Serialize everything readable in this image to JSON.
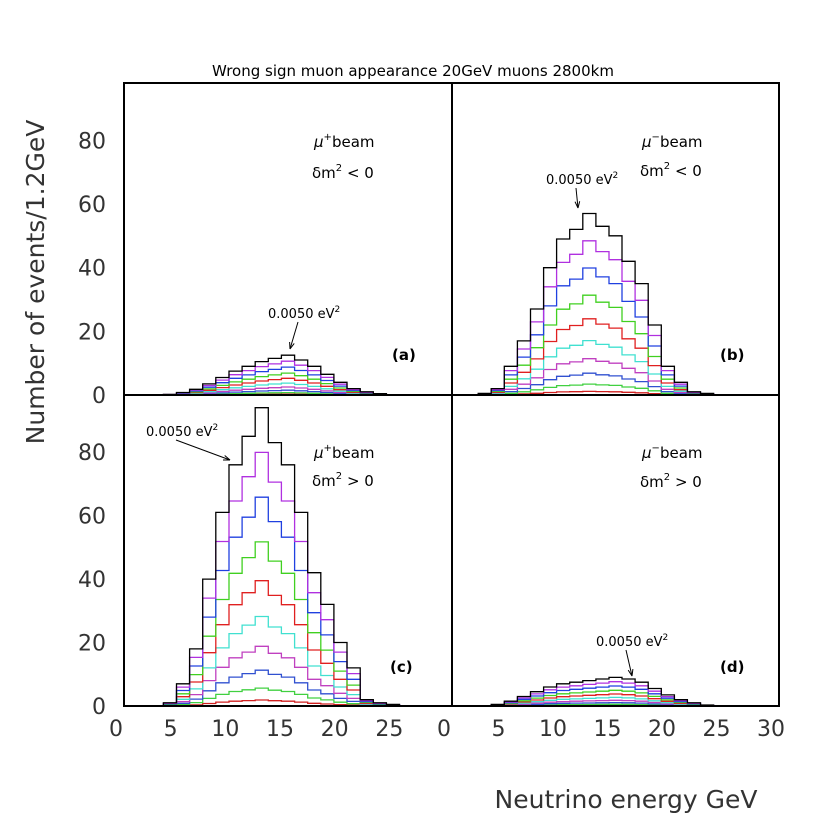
{
  "chart_data": {
    "type": "histogram",
    "title": "Wrong sign muon appearance 20GeV muons 2800km",
    "xlabel": "Neutrino energy GeV",
    "ylabel": "Number of events/1.2GeV",
    "xlim": [
      0,
      30
    ],
    "ylim": [
      0,
      98
    ],
    "yticks": [
      "0",
      "20",
      "40",
      "60",
      "80"
    ],
    "xticks_left": [
      "0",
      "5",
      "10",
      "15",
      "20",
      "25"
    ],
    "xticks_right": [
      "0",
      "5",
      "10",
      "15",
      "20",
      "25",
      "30"
    ],
    "bin_width_gev": 1.2,
    "series_colors": [
      "#000000",
      "#b030e0",
      "#2040e0",
      "#40d020",
      "#e02020",
      "#40e0d0",
      "#c040c0",
      "#3050d0",
      "#40d040",
      "#d02020"
    ],
    "series_scale": [
      1.0,
      0.85,
      0.7,
      0.55,
      0.42,
      0.3,
      0.2,
      0.12,
      0.06,
      0.02
    ],
    "panels": [
      {
        "id": "a",
        "letter": "(a)",
        "beam": "beam",
        "beam_sign": "+",
        "dm2_sign": "< 0",
        "annotation": "0.0050 eV",
        "annotation_sup": "2",
        "bins_start": 3.6,
        "peak_values": [
          0.2,
          0.8,
          1.8,
          3.5,
          5.5,
          7.5,
          9.0,
          10.5,
          11.5,
          12.5,
          11.0,
          9.0,
          6.5,
          4.0,
          2.0,
          1.0,
          0.4,
          0.1
        ]
      },
      {
        "id": "b",
        "letter": "(b)",
        "beam": "beam",
        "beam_sign": "−",
        "dm2_sign": "< 0",
        "annotation": "0.0050 eV",
        "annotation_sup": "2",
        "bins_start": 2.4,
        "peak_values": [
          0.5,
          2,
          9,
          17,
          27,
          40,
          49,
          52,
          57,
          53,
          50,
          42,
          35,
          22,
          9,
          4,
          1,
          0.5
        ]
      },
      {
        "id": "c",
        "letter": "(c)",
        "beam": "beam",
        "beam_sign": "+",
        "dm2_sign": "> 0",
        "annotation": "0.0050 eV",
        "annotation_sup": "2",
        "bins_start": 3.6,
        "peak_values": [
          1,
          7,
          18,
          40,
          61,
          76,
          85,
          94,
          83,
          76,
          61,
          42,
          32,
          20,
          12,
          2,
          1,
          0.5
        ]
      },
      {
        "id": "d",
        "letter": "(d)",
        "beam": "beam",
        "beam_sign": "−",
        "dm2_sign": "> 0",
        "annotation": "0.0050 eV",
        "annotation_sup": "2",
        "bins_start": 2.4,
        "peak_values": [
          0.1,
          0.5,
          1.5,
          3,
          4.5,
          6,
          7,
          7.5,
          8,
          8.5,
          9,
          8.5,
          7.5,
          5.5,
          3.5,
          2,
          1,
          0.3,
          0.1
        ]
      }
    ]
  }
}
